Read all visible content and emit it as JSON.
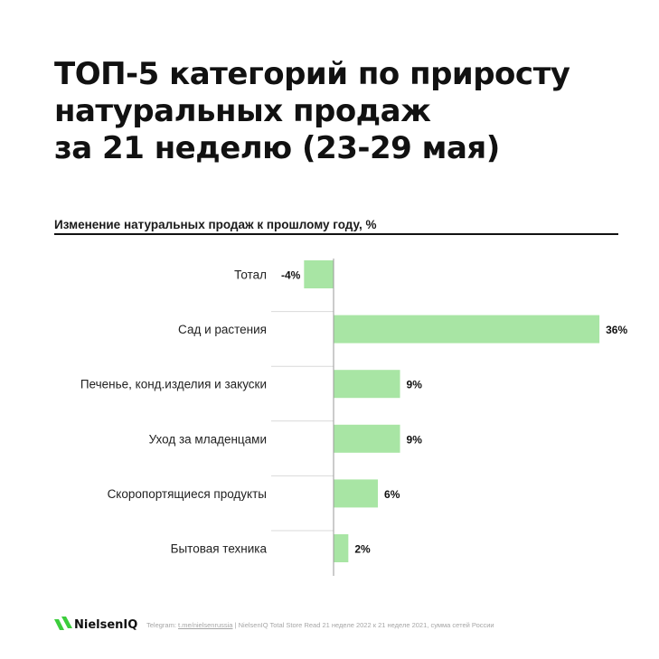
{
  "title_lines": [
    "ТОП-5 категорий по приросту",
    "натуральных продаж",
    "за 21 неделю (23-29 мая)"
  ],
  "subtitle": "Изменение натуральных продаж к прошлому году, %",
  "colors": {
    "bar": "#a8e5a4",
    "text": "#111111",
    "source": "#a6a6a6",
    "logo_green": "#3ccd3c"
  },
  "chart_data": {
    "type": "bar",
    "orientation": "horizontal",
    "title": "ТОП-5 категорий по приросту натуральных продаж за 21 неделю (23-29 мая)",
    "subtitle": "Изменение натуральных продаж к прошлому году, %",
    "categories": [
      "Тотал",
      "Сад и растения",
      "Печенье, конд.изделия и закуски",
      "Уход за младенцами",
      "Скоропортящиеся продукты",
      "Бытовая техника"
    ],
    "values": [
      -4,
      36,
      9,
      9,
      6,
      2
    ],
    "data_labels": [
      "-4%",
      "36%",
      "9%",
      "9%",
      "6%",
      "2%"
    ],
    "unit": "%",
    "grid": false,
    "legend": "none"
  },
  "footer": {
    "brand": "NielsenIQ",
    "telegram_label": "Telegram:",
    "telegram_link": "t.me/nielsenrussia",
    "separator": "|",
    "source_text": "NielsenIQ Total Store Read 21 неделе 2022 к 21 неделе 2021, сумма сетей России"
  }
}
